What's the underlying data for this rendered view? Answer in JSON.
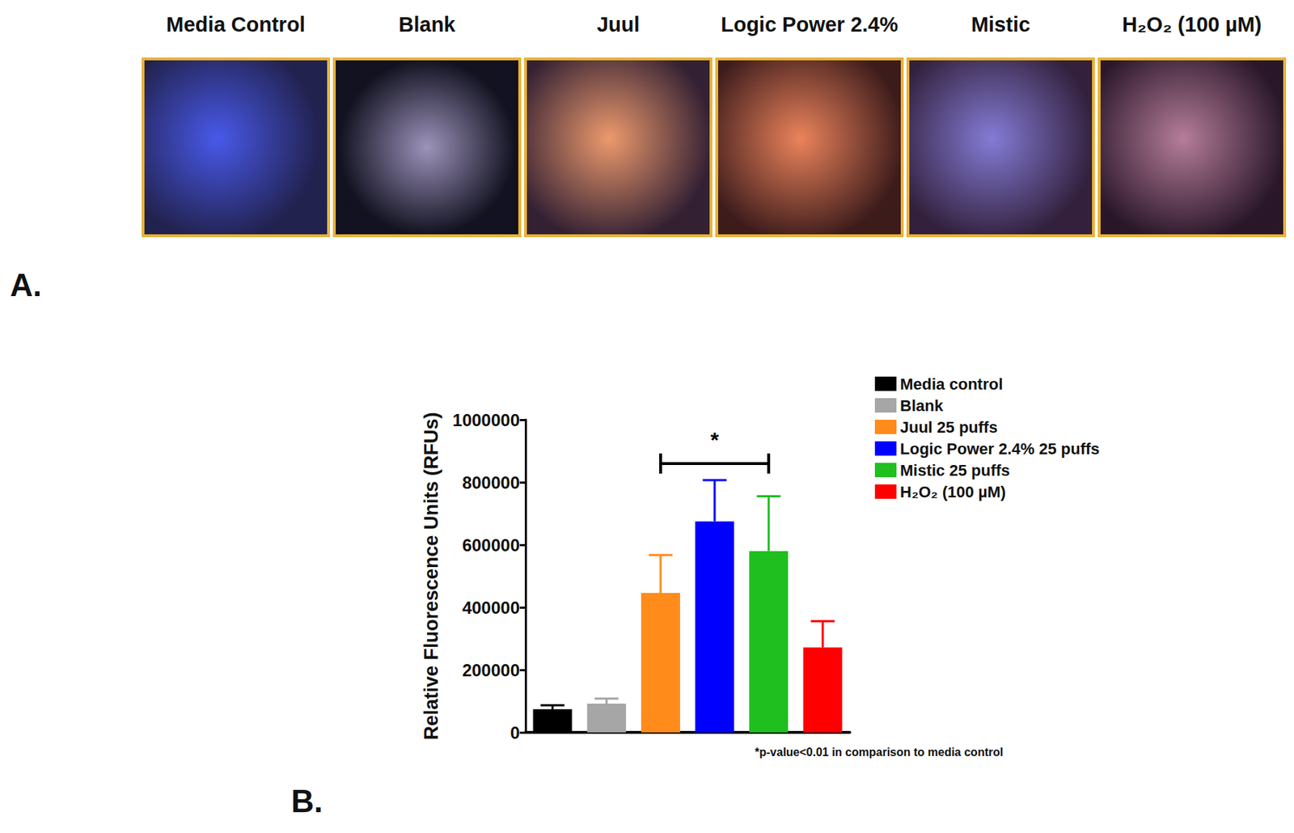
{
  "chart_data": {
    "type": "bar",
    "categories": [
      "Media control",
      "Blank",
      "Juul 25 puffs",
      "Logic Power 2.4% 25 puffs",
      "Mistic 25 puffs",
      "H₂O₂ (100 µM)"
    ],
    "values": [
      74000,
      92000,
      446000,
      675000,
      580000,
      272000
    ],
    "errors": [
      13000,
      16000,
      121000,
      132000,
      175000,
      84000
    ],
    "colors": [
      "#000000",
      "#a6a6a6",
      "#ff8c1a",
      "#0000ff",
      "#1fbf1f",
      "#ff0000"
    ],
    "y_label": "Relative Fluorescence Units (RFUs)",
    "ylim": [
      0,
      1000000
    ],
    "yticks": [
      0,
      200000,
      400000,
      600000,
      800000,
      1000000
    ],
    "grid": false,
    "legend": "right",
    "tick_labels": "y",
    "panel_label": "B.",
    "annotations": [
      {
        "text": "*",
        "from": "Juul 25 puffs",
        "to": "Mistic 25 puffs",
        "y": 860000
      }
    ],
    "footnote": "*p-value<0.01 in comparison to media control"
  },
  "image_panel": {
    "panel_label": "A.",
    "titles": [
      "Media Control",
      "Blank",
      "Juul",
      "Logic Power 2.4%",
      "Mistic",
      "H₂O₂ (100 µM)"
    ]
  }
}
